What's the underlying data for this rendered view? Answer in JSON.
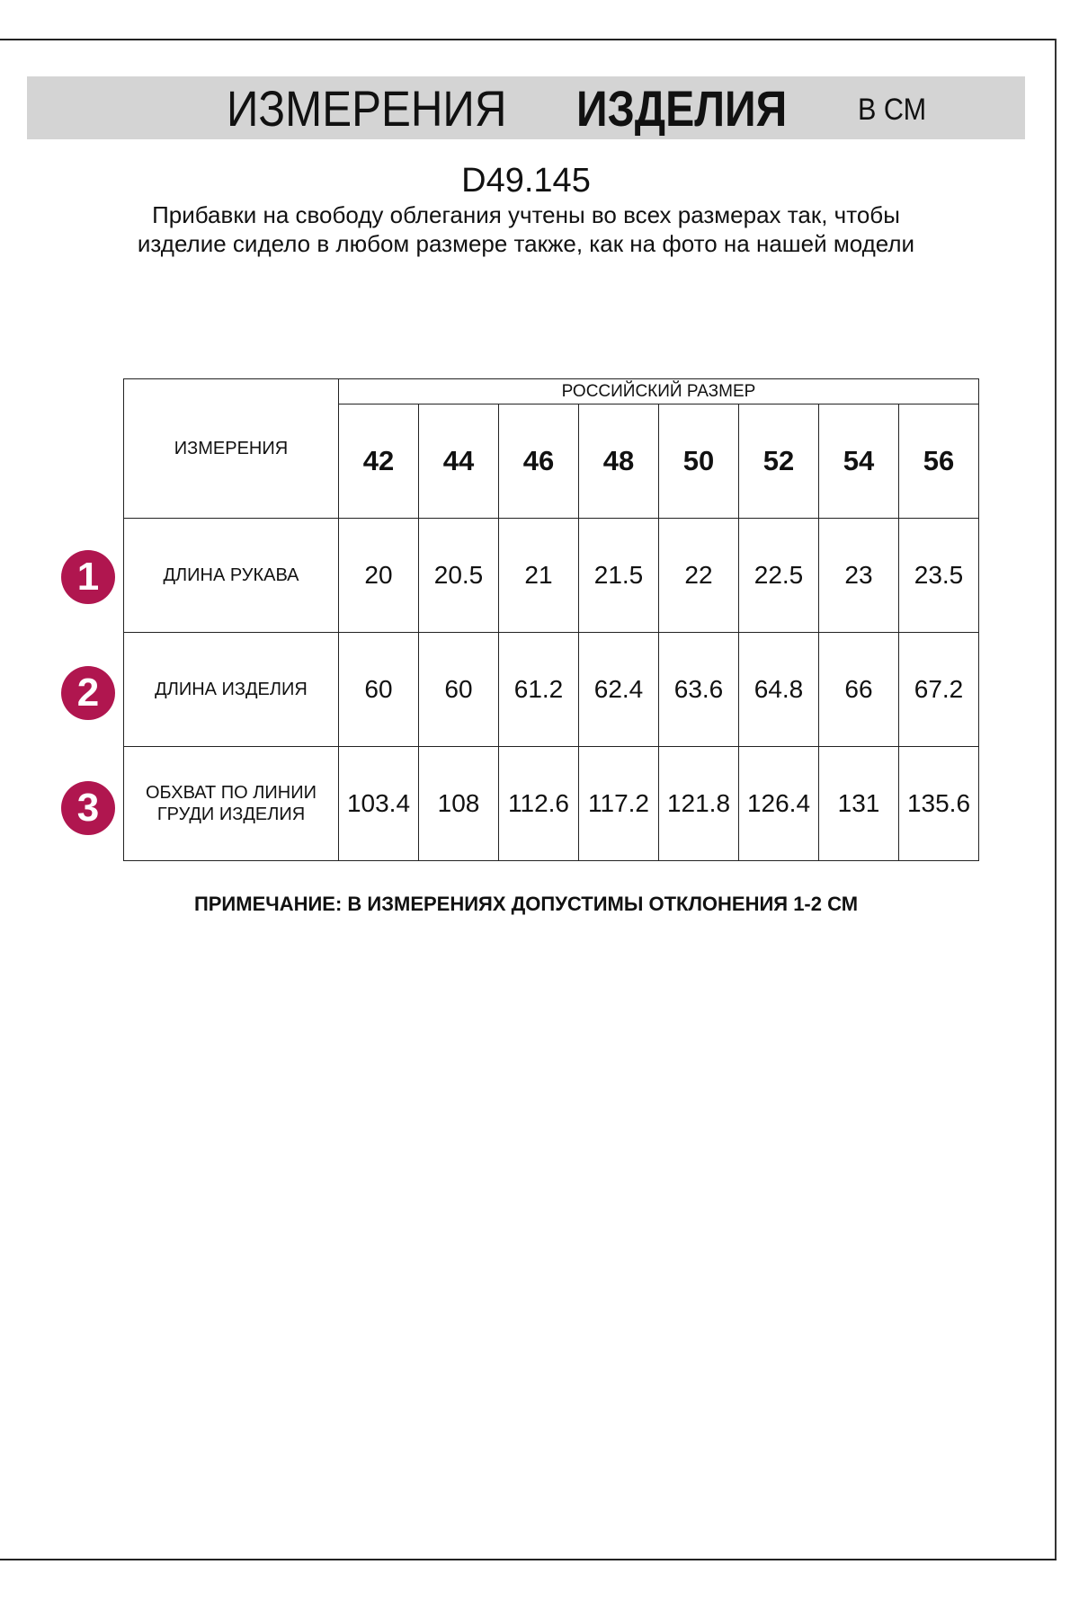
{
  "header": {
    "title_part1": "ИЗМЕРЕНИЯ",
    "title_part2": "ИЗДЕЛИЯ",
    "unit": "В СМ"
  },
  "product_code": "D49.145",
  "description": "Прибавки на свободу облегания учтены во всех размерах так, чтобы изделие сидело в любом размере также, как на фото на нашей модели",
  "accent_color": "#b0164f",
  "table": {
    "measure_header": "ИЗМЕРЕНИЯ",
    "size_group_header": "РОССИЙСКИЙ РАЗМЕР",
    "sizes": [
      "42",
      "44",
      "46",
      "48",
      "50",
      "52",
      "54",
      "56"
    ],
    "rows": [
      {
        "number": "1",
        "label": "ДЛИНА РУКАВА",
        "values": [
          "20",
          "20.5",
          "21",
          "21.5",
          "22",
          "22.5",
          "23",
          "23.5"
        ]
      },
      {
        "number": "2",
        "label": "ДЛИНА ИЗДЕЛИЯ",
        "values": [
          "60",
          "60",
          "61.2",
          "62.4",
          "63.6",
          "64.8",
          "66",
          "67.2"
        ]
      },
      {
        "number": "3",
        "label": "ОБХВАТ ПО ЛИНИИ ГРУДИ ИЗДЕЛИЯ",
        "values": [
          "103.4",
          "108",
          "112.6",
          "117.2",
          "121.8",
          "126.4",
          "131",
          "135.6"
        ]
      }
    ]
  },
  "note": "ПРИМЕЧАНИЕ: В ИЗМЕРЕНИЯХ ДОПУСТИМЫ ОТКЛОНЕНИЯ 1-2 СМ"
}
